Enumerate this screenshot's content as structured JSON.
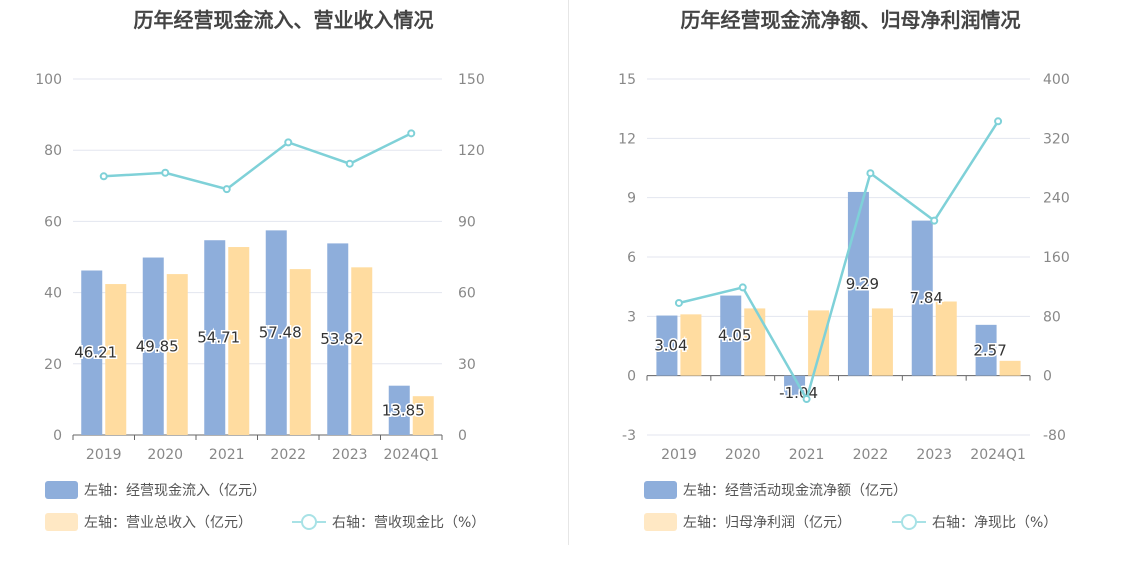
{
  "colors": {
    "bar_primary": "#8eaedb",
    "bar_secondary": "#ffdca0",
    "line": "#7fd1d8",
    "grid": "#e3e6ef",
    "axis_text": "#888888",
    "label_text": "#333333"
  },
  "chart_data": [
    {
      "type": "bar",
      "title": "历年经营现金流入、营业收入情况",
      "categories": [
        "2019",
        "2020",
        "2021",
        "2022",
        "2023",
        "2024Q1"
      ],
      "left_axis": {
        "ylim": [
          0,
          100
        ],
        "ticks": [
          "0",
          "20",
          "40",
          "60",
          "80",
          "100"
        ]
      },
      "right_axis": {
        "ylim": [
          0,
          150
        ],
        "ticks": [
          "0",
          "30",
          "60",
          "90",
          "120",
          "150"
        ]
      },
      "grid": true,
      "legend_position": "bottom-left",
      "series": [
        {
          "name": "左轴：经营现金流入（亿元）",
          "kind": "bar",
          "axis": "left",
          "color": "#8eaedb",
          "values": [
            46.21,
            49.85,
            54.71,
            57.48,
            53.82,
            13.85
          ],
          "labels": [
            "46.21",
            "49.85",
            "54.71",
            "57.48",
            "53.82",
            "13.85"
          ]
        },
        {
          "name": "左轴：营业总收入（亿元）",
          "kind": "bar",
          "axis": "left",
          "color": "#ffdca0",
          "values": [
            42.4,
            45.2,
            52.8,
            46.6,
            47.1,
            10.9
          ]
        },
        {
          "name": "右轴：营收现金比（%）",
          "kind": "line",
          "axis": "right",
          "color": "#7fd1d8",
          "values": [
            109.0,
            110.5,
            103.6,
            123.3,
            114.3,
            127.1
          ]
        }
      ]
    },
    {
      "type": "bar",
      "title": "历年经营现金流净额、归母净利润情况",
      "categories": [
        "2019",
        "2020",
        "2021",
        "2022",
        "2023",
        "2024Q1"
      ],
      "left_axis": {
        "ylim": [
          -3,
          15
        ],
        "ticks": [
          "-3",
          "0",
          "3",
          "6",
          "9",
          "12",
          "15"
        ]
      },
      "right_axis": {
        "ylim": [
          -80,
          400
        ],
        "ticks": [
          "-80",
          "0",
          "80",
          "160",
          "240",
          "320",
          "400"
        ]
      },
      "grid": true,
      "legend_position": "bottom-left",
      "series": [
        {
          "name": "左轴：经营活动现金流净额（亿元）",
          "kind": "bar",
          "axis": "left",
          "color": "#8eaedb",
          "values": [
            3.04,
            4.05,
            -1.04,
            9.29,
            7.84,
            2.57
          ],
          "labels": [
            "3.04",
            "4.05",
            "-1.04",
            "9.29",
            "7.84",
            "2.57"
          ]
        },
        {
          "name": "左轴：归母净利润（亿元）",
          "kind": "bar",
          "axis": "left",
          "color": "#ffdca0",
          "values": [
            3.1,
            3.4,
            3.3,
            3.4,
            3.75,
            0.75
          ]
        },
        {
          "name": "右轴：净现比（%）",
          "kind": "line",
          "axis": "right",
          "color": "#7fd1d8",
          "values": [
            98.0,
            119.0,
            -31.5,
            273.0,
            209.0,
            343.0
          ]
        }
      ]
    }
  ]
}
